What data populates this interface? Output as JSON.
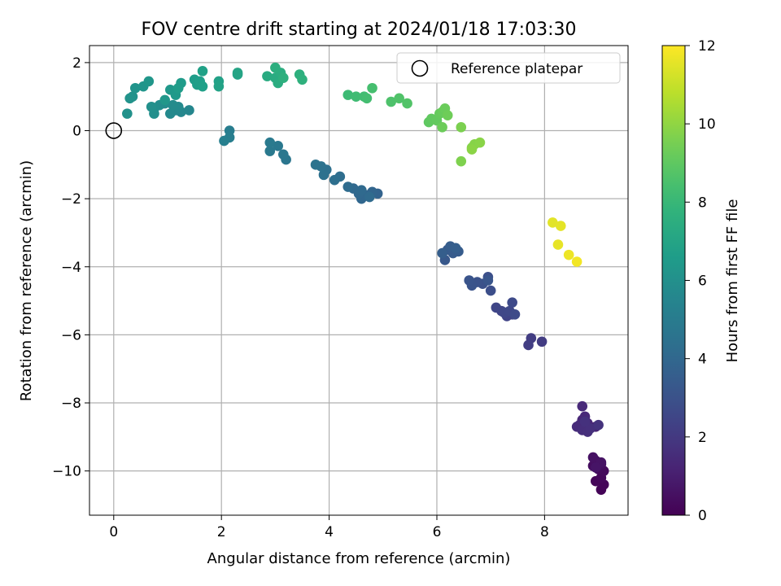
{
  "chart_data": {
    "type": "scatter",
    "title": "FOV centre drift starting at 2024/01/18 17:03:30",
    "xlabel": "Angular distance from reference (arcmin)",
    "ylabel": "Rotation from reference (arcmin)",
    "xlim": [
      -0.45,
      9.55
    ],
    "ylim": [
      -11.3,
      2.5
    ],
    "xticks": [
      0,
      2,
      4,
      6,
      8
    ],
    "yticks": [
      2,
      0,
      -2,
      -4,
      -6,
      -8,
      -10
    ],
    "xtick_labels": [
      "0",
      "2",
      "4",
      "6",
      "8"
    ],
    "ytick_labels": [
      "2",
      "0",
      "−2",
      "−4",
      "−6",
      "−8",
      "−10"
    ],
    "grid": true,
    "legend": {
      "position": "top-right",
      "entries": [
        "Reference platepar"
      ]
    },
    "reference_point": {
      "name": "Reference platepar",
      "x": 0,
      "y": 0
    },
    "colorbar": {
      "label": "Hours from first FF file",
      "min": 0,
      "max": 12,
      "ticks": [
        0,
        2,
        4,
        6,
        8,
        10,
        12
      ],
      "tick_labels": [
        "0",
        "2",
        "4",
        "6",
        "8",
        "10",
        "12"
      ],
      "colormap": "viridis"
    },
    "points": [
      {
        "x": 9.05,
        "y": -10.55,
        "h": 0.1
      },
      {
        "x": 9.1,
        "y": -10.4,
        "h": 0.15
      },
      {
        "x": 8.95,
        "y": -10.3,
        "h": 0.2
      },
      {
        "x": 9.05,
        "y": -10.2,
        "h": 0.25
      },
      {
        "x": 9.1,
        "y": -10.0,
        "h": 0.3
      },
      {
        "x": 9.0,
        "y": -9.95,
        "h": 0.35
      },
      {
        "x": 8.9,
        "y": -9.85,
        "h": 0.4
      },
      {
        "x": 9.05,
        "y": -9.8,
        "h": 0.45
      },
      {
        "x": 8.95,
        "y": -9.7,
        "h": 0.5
      },
      {
        "x": 8.9,
        "y": -9.6,
        "h": 0.55
      },
      {
        "x": 9.05,
        "y": -9.75,
        "h": 0.6
      },
      {
        "x": 8.95,
        "y": -9.9,
        "h": 0.65
      },
      {
        "x": 8.95,
        "y": -8.7,
        "h": 1.2
      },
      {
        "x": 8.8,
        "y": -8.6,
        "h": 1.25
      },
      {
        "x": 8.7,
        "y": -8.5,
        "h": 1.3
      },
      {
        "x": 8.75,
        "y": -8.4,
        "h": 1.35
      },
      {
        "x": 8.7,
        "y": -8.1,
        "h": 1.4
      },
      {
        "x": 8.65,
        "y": -8.65,
        "h": 1.45
      },
      {
        "x": 8.6,
        "y": -8.7,
        "h": 1.5
      },
      {
        "x": 8.7,
        "y": -8.8,
        "h": 1.55
      },
      {
        "x": 8.8,
        "y": -8.85,
        "h": 1.6
      },
      {
        "x": 8.85,
        "y": -8.75,
        "h": 1.65
      },
      {
        "x": 8.75,
        "y": -8.55,
        "h": 1.7
      },
      {
        "x": 9.0,
        "y": -8.65,
        "h": 1.75
      },
      {
        "x": 7.95,
        "y": -6.2,
        "h": 2.1
      },
      {
        "x": 7.75,
        "y": -6.1,
        "h": 2.15
      },
      {
        "x": 7.7,
        "y": -6.3,
        "h": 2.2
      },
      {
        "x": 7.4,
        "y": -5.4,
        "h": 2.35
      },
      {
        "x": 7.3,
        "y": -5.45,
        "h": 2.4
      },
      {
        "x": 7.2,
        "y": -5.3,
        "h": 2.45
      },
      {
        "x": 7.1,
        "y": -5.2,
        "h": 2.5
      },
      {
        "x": 7.25,
        "y": -5.35,
        "h": 2.55
      },
      {
        "x": 7.35,
        "y": -5.3,
        "h": 2.6
      },
      {
        "x": 7.4,
        "y": -5.05,
        "h": 2.65
      },
      {
        "x": 7.45,
        "y": -5.4,
        "h": 2.7
      },
      {
        "x": 7.0,
        "y": -4.7,
        "h": 2.85
      },
      {
        "x": 6.95,
        "y": -4.3,
        "h": 2.9
      },
      {
        "x": 6.85,
        "y": -4.5,
        "h": 2.95
      },
      {
        "x": 6.75,
        "y": -4.45,
        "h": 3.0
      },
      {
        "x": 6.65,
        "y": -4.55,
        "h": 3.05
      },
      {
        "x": 6.6,
        "y": -4.4,
        "h": 3.1
      },
      {
        "x": 6.95,
        "y": -4.4,
        "h": 3.15
      },
      {
        "x": 6.15,
        "y": -3.8,
        "h": 3.3
      },
      {
        "x": 6.2,
        "y": -3.5,
        "h": 3.35
      },
      {
        "x": 6.3,
        "y": -3.6,
        "h": 3.4
      },
      {
        "x": 6.4,
        "y": -3.55,
        "h": 3.45
      },
      {
        "x": 6.25,
        "y": -3.4,
        "h": 3.5
      },
      {
        "x": 6.1,
        "y": -3.6,
        "h": 3.55
      },
      {
        "x": 6.35,
        "y": -3.45,
        "h": 3.6
      },
      {
        "x": 4.9,
        "y": -1.85,
        "h": 3.8
      },
      {
        "x": 4.8,
        "y": -1.8,
        "h": 3.85
      },
      {
        "x": 4.7,
        "y": -1.9,
        "h": 3.9
      },
      {
        "x": 4.6,
        "y": -2.0,
        "h": 3.95
      },
      {
        "x": 4.55,
        "y": -1.85,
        "h": 4.0
      },
      {
        "x": 4.45,
        "y": -1.7,
        "h": 4.05
      },
      {
        "x": 4.6,
        "y": -1.75,
        "h": 4.1
      },
      {
        "x": 4.75,
        "y": -1.95,
        "h": 4.15
      },
      {
        "x": 4.35,
        "y": -1.65,
        "h": 4.2
      },
      {
        "x": 4.2,
        "y": -1.35,
        "h": 4.3
      },
      {
        "x": 4.1,
        "y": -1.45,
        "h": 4.35
      },
      {
        "x": 3.95,
        "y": -1.15,
        "h": 4.4
      },
      {
        "x": 3.9,
        "y": -1.3,
        "h": 4.45
      },
      {
        "x": 3.85,
        "y": -1.05,
        "h": 4.5
      },
      {
        "x": 3.75,
        "y": -1.0,
        "h": 4.55
      },
      {
        "x": 3.2,
        "y": -0.85,
        "h": 4.7
      },
      {
        "x": 3.15,
        "y": -0.7,
        "h": 4.75
      },
      {
        "x": 3.05,
        "y": -0.45,
        "h": 4.8
      },
      {
        "x": 2.9,
        "y": -0.6,
        "h": 4.85
      },
      {
        "x": 2.9,
        "y": -0.35,
        "h": 4.9
      },
      {
        "x": 2.15,
        "y": 0.0,
        "h": 5.1
      },
      {
        "x": 2.15,
        "y": -0.2,
        "h": 5.15
      },
      {
        "x": 2.05,
        "y": -0.3,
        "h": 5.2
      },
      {
        "x": 1.4,
        "y": 0.6,
        "h": 5.5
      },
      {
        "x": 1.25,
        "y": 0.55,
        "h": 5.55
      },
      {
        "x": 1.15,
        "y": 0.6,
        "h": 5.6
      },
      {
        "x": 1.05,
        "y": 0.5,
        "h": 5.65
      },
      {
        "x": 1.2,
        "y": 0.7,
        "h": 5.7
      },
      {
        "x": 1.1,
        "y": 0.75,
        "h": 5.75
      },
      {
        "x": 0.95,
        "y": 0.8,
        "h": 5.8
      },
      {
        "x": 0.85,
        "y": 0.75,
        "h": 5.85
      },
      {
        "x": 0.75,
        "y": 0.65,
        "h": 5.9
      },
      {
        "x": 0.75,
        "y": 0.5,
        "h": 5.95
      },
      {
        "x": 0.7,
        "y": 0.7,
        "h": 6.0
      },
      {
        "x": 0.25,
        "y": 0.5,
        "h": 6.05
      },
      {
        "x": 0.35,
        "y": 1.0,
        "h": 6.1
      },
      {
        "x": 0.3,
        "y": 0.95,
        "h": 6.15
      },
      {
        "x": 0.4,
        "y": 1.25,
        "h": 6.2
      },
      {
        "x": 0.55,
        "y": 1.3,
        "h": 6.25
      },
      {
        "x": 0.65,
        "y": 1.45,
        "h": 6.3
      },
      {
        "x": 0.95,
        "y": 0.9,
        "h": 6.35
      },
      {
        "x": 1.05,
        "y": 1.2,
        "h": 6.4
      },
      {
        "x": 1.15,
        "y": 1.05,
        "h": 6.45
      },
      {
        "x": 1.25,
        "y": 1.4,
        "h": 6.5
      },
      {
        "x": 1.2,
        "y": 1.25,
        "h": 6.55
      },
      {
        "x": 1.5,
        "y": 1.5,
        "h": 6.6
      },
      {
        "x": 1.55,
        "y": 1.35,
        "h": 6.65
      },
      {
        "x": 1.6,
        "y": 1.45,
        "h": 6.7
      },
      {
        "x": 1.65,
        "y": 1.3,
        "h": 6.75
      },
      {
        "x": 1.65,
        "y": 1.75,
        "h": 6.8
      },
      {
        "x": 1.95,
        "y": 1.45,
        "h": 6.85
      },
      {
        "x": 1.95,
        "y": 1.3,
        "h": 6.9
      },
      {
        "x": 2.3,
        "y": 1.65,
        "h": 6.95
      },
      {
        "x": 2.3,
        "y": 1.7,
        "h": 7.0
      },
      {
        "x": 2.85,
        "y": 1.6,
        "h": 7.3
      },
      {
        "x": 3.0,
        "y": 1.55,
        "h": 7.35
      },
      {
        "x": 3.05,
        "y": 1.4,
        "h": 7.4
      },
      {
        "x": 3.1,
        "y": 1.7,
        "h": 7.45
      },
      {
        "x": 3.0,
        "y": 1.85,
        "h": 7.5
      },
      {
        "x": 3.15,
        "y": 1.55,
        "h": 7.55
      },
      {
        "x": 3.45,
        "y": 1.65,
        "h": 7.6
      },
      {
        "x": 3.5,
        "y": 1.5,
        "h": 7.65
      },
      {
        "x": 4.35,
        "y": 1.05,
        "h": 8.2
      },
      {
        "x": 4.5,
        "y": 1.0,
        "h": 8.25
      },
      {
        "x": 4.65,
        "y": 1.0,
        "h": 8.3
      },
      {
        "x": 4.7,
        "y": 0.95,
        "h": 8.35
      },
      {
        "x": 4.8,
        "y": 1.25,
        "h": 8.4
      },
      {
        "x": 5.15,
        "y": 0.85,
        "h": 8.6
      },
      {
        "x": 5.3,
        "y": 0.95,
        "h": 8.65
      },
      {
        "x": 5.45,
        "y": 0.8,
        "h": 8.7
      },
      {
        "x": 5.85,
        "y": 0.25,
        "h": 9.0
      },
      {
        "x": 5.9,
        "y": 0.35,
        "h": 9.05
      },
      {
        "x": 6.0,
        "y": 0.3,
        "h": 9.1
      },
      {
        "x": 6.05,
        "y": 0.5,
        "h": 9.15
      },
      {
        "x": 6.1,
        "y": 0.55,
        "h": 9.2
      },
      {
        "x": 6.15,
        "y": 0.65,
        "h": 9.25
      },
      {
        "x": 6.1,
        "y": 0.1,
        "h": 9.3
      },
      {
        "x": 6.2,
        "y": 0.45,
        "h": 9.35
      },
      {
        "x": 6.45,
        "y": 0.1,
        "h": 9.6
      },
      {
        "x": 6.45,
        "y": -0.9,
        "h": 9.65
      },
      {
        "x": 6.65,
        "y": -0.5,
        "h": 9.75
      },
      {
        "x": 6.7,
        "y": -0.4,
        "h": 9.8
      },
      {
        "x": 6.8,
        "y": -0.35,
        "h": 9.85
      },
      {
        "x": 6.65,
        "y": -0.55,
        "h": 9.9
      },
      {
        "x": 8.15,
        "y": -2.7,
        "h": 11.5
      },
      {
        "x": 8.3,
        "y": -2.8,
        "h": 11.55
      },
      {
        "x": 8.25,
        "y": -3.35,
        "h": 11.6
      },
      {
        "x": 8.45,
        "y": -3.65,
        "h": 11.7
      },
      {
        "x": 8.6,
        "y": -3.85,
        "h": 11.8
      }
    ]
  }
}
